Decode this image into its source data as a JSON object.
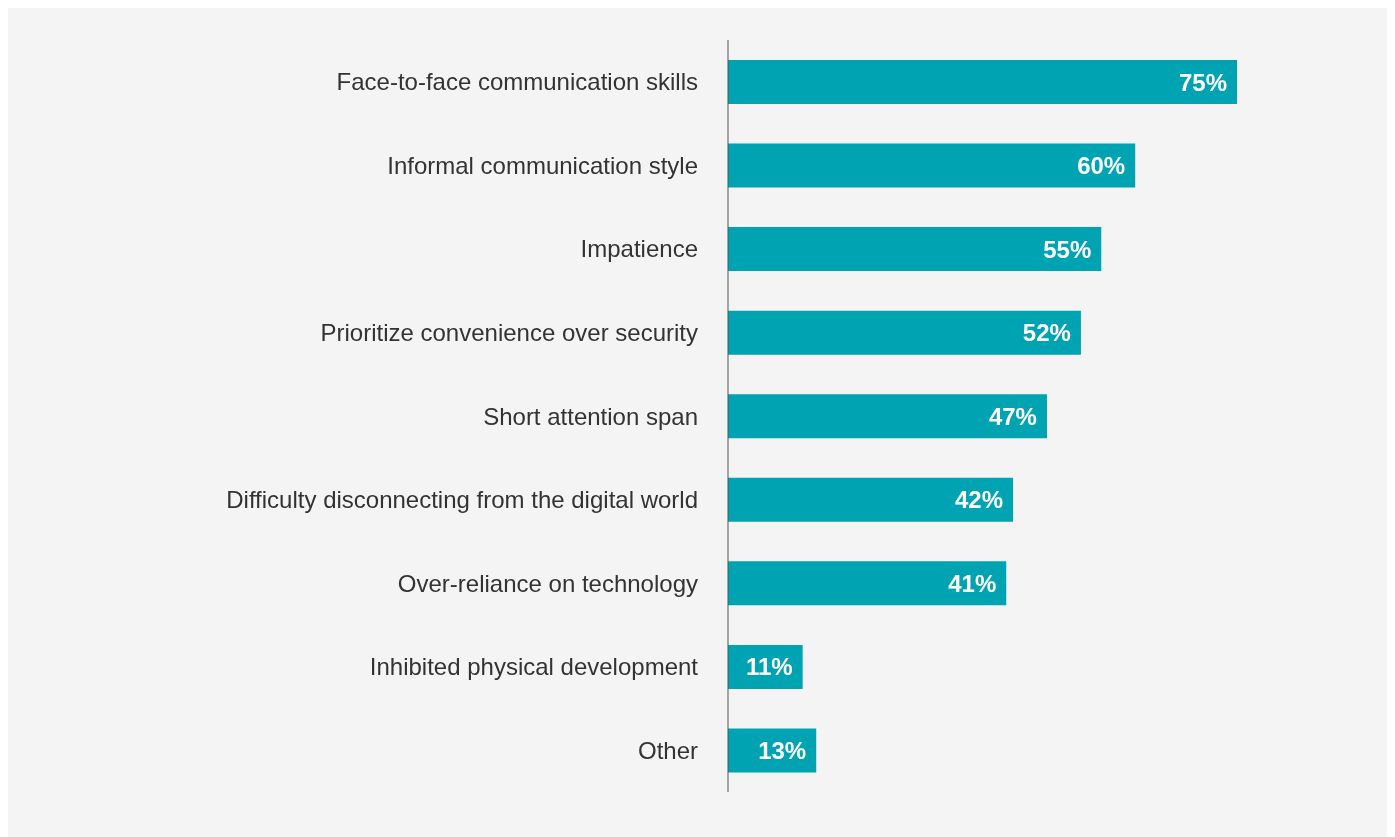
{
  "chart_data": {
    "type": "bar",
    "orientation": "horizontal",
    "categories": [
      "Face-to-face communication skills",
      "Informal communication style",
      "Impatience",
      "Prioritize convenience over security",
      "Short attention span",
      "Difficulty disconnecting from the digital world",
      "Over-reliance on technology",
      "Inhibited physical development",
      "Other"
    ],
    "values": [
      75,
      60,
      55,
      52,
      47,
      42,
      41,
      11,
      13
    ],
    "value_labels": [
      "75%",
      "60%",
      "55%",
      "52%",
      "47%",
      "42%",
      "41%",
      "11%",
      "13%"
    ],
    "color": "#00a3b2"
  }
}
